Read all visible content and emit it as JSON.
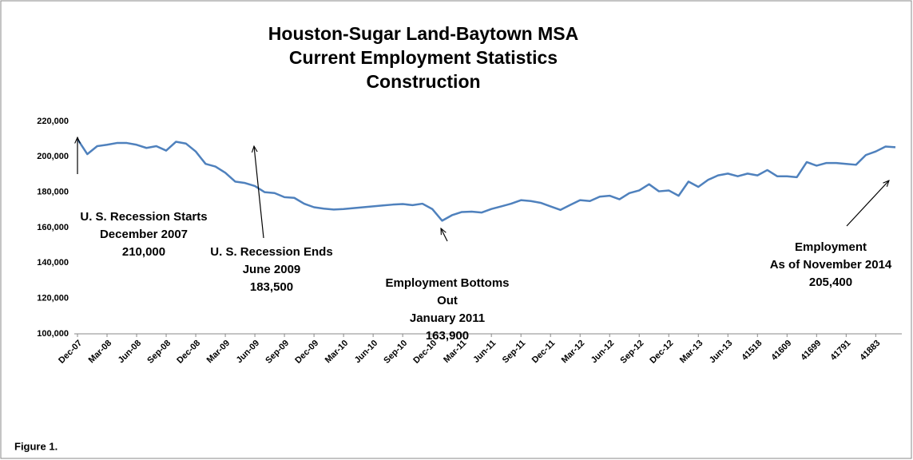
{
  "chart_data": {
    "type": "line",
    "title_lines": [
      "Houston-Sugar Land-Baytown MSA",
      "Current Employment Statistics",
      "Construction"
    ],
    "categories": [
      "Dec-07",
      null,
      null,
      "Mar-08",
      null,
      null,
      "Jun-08",
      null,
      null,
      "Sep-08",
      null,
      null,
      "Dec-08",
      null,
      null,
      "Mar-09",
      null,
      null,
      "Jun-09",
      null,
      null,
      "Sep-09",
      null,
      null,
      "Dec-09",
      null,
      null,
      "Mar-10",
      null,
      null,
      "Jun-10",
      null,
      null,
      "Sep-10",
      null,
      null,
      "Dec-10",
      null,
      null,
      "Mar-11",
      null,
      null,
      "Jun-11",
      null,
      null,
      "Sep-11",
      null,
      null,
      "Dec-11",
      null,
      null,
      "Mar-12",
      null,
      null,
      "Jun-12",
      null,
      null,
      "Sep-12",
      null,
      null,
      "Dec-12",
      null,
      null,
      "Mar-13",
      null,
      null,
      "Jun-13",
      null,
      null,
      "41518",
      null,
      null,
      "41609",
      null,
      null,
      "41699",
      null,
      null,
      "41791",
      null,
      null,
      "41883",
      null,
      null
    ],
    "series": [
      {
        "name": "Construction",
        "color": "#4f81bd",
        "values": [
          210000,
          201500,
          206000,
          206800,
          207800,
          207800,
          206800,
          205000,
          206000,
          203500,
          208500,
          207500,
          203000,
          196000,
          194500,
          191000,
          186000,
          185200,
          183500,
          180000,
          179500,
          177200,
          176800,
          173500,
          171500,
          170700,
          170200,
          170500,
          171000,
          171500,
          172000,
          172500,
          173000,
          173300,
          172700,
          173500,
          170500,
          163900,
          167000,
          168800,
          169000,
          168500,
          170500,
          172000,
          173500,
          175500,
          175000,
          174000,
          172000,
          170000,
          172800,
          175500,
          175000,
          177500,
          178000,
          176000,
          179500,
          181000,
          184500,
          180500,
          181000,
          178000,
          186000,
          183000,
          187000,
          189500,
          190500,
          189000,
          190500,
          189500,
          192500,
          189000,
          189000,
          188500,
          197000,
          195000,
          196500,
          196500,
          196000,
          195500,
          201000,
          203000,
          205800,
          205400
        ]
      }
    ],
    "ylim": [
      100000,
      220000
    ],
    "yticks": [
      {
        "value": 100000,
        "label": "100,000"
      },
      {
        "value": 120000,
        "label": "120,000"
      },
      {
        "value": 140000,
        "label": "140,000"
      },
      {
        "value": 160000,
        "label": "160,000"
      },
      {
        "value": 180000,
        "label": "180,000"
      },
      {
        "value": 200000,
        "label": "200,000"
      },
      {
        "value": 220000,
        "label": "220,000"
      }
    ],
    "annotations": [
      {
        "lines": [
          "U. S. Recession Starts",
          "December 2007",
          "210,000"
        ]
      },
      {
        "lines": [
          "U. S. Recession Ends",
          "June 2009",
          "183,500"
        ]
      },
      {
        "lines": [
          "Employment Bottoms",
          "Out",
          "January 2011",
          "163,900"
        ]
      },
      {
        "lines": [
          "Employment",
          "As of November 2014",
          "205,400"
        ]
      }
    ],
    "caption": "Figure 1."
  }
}
